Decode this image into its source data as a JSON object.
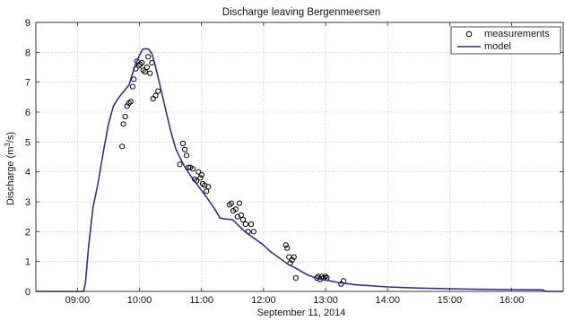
{
  "chart_data": {
    "type": "line",
    "title": "Discharge leaving Bergenmeersen",
    "xlabel": "September 11, 2014",
    "ylabel": "Discharge (m³/s)",
    "ylabel_parts": [
      "Discharge (m",
      "3",
      "/s)"
    ],
    "x_unit": "hours (time of day)",
    "xlim": [
      8.33,
      16.83
    ],
    "ylim": [
      0,
      9
    ],
    "x_ticks": [
      9,
      10,
      11,
      12,
      13,
      14,
      15,
      16
    ],
    "x_tick_labels": [
      "09:00",
      "10:00",
      "11:00",
      "12:00",
      "13:00",
      "14:00",
      "15:00",
      "16:00"
    ],
    "y_ticks": [
      0,
      1,
      2,
      3,
      4,
      5,
      6,
      7,
      8,
      9
    ],
    "y_tick_labels": [
      "0",
      "1",
      "2",
      "3",
      "4",
      "5",
      "6",
      "7",
      "8",
      "9"
    ],
    "grid": true,
    "legend_position": "top-right",
    "series": [
      {
        "name": "measurements",
        "type": "scatter",
        "marker": "circle",
        "color": "#000000",
        "points": [
          [
            9.72,
            4.85
          ],
          [
            9.74,
            5.6
          ],
          [
            9.77,
            5.85
          ],
          [
            9.8,
            6.2
          ],
          [
            9.83,
            6.3
          ],
          [
            9.86,
            6.35
          ],
          [
            9.89,
            6.85
          ],
          [
            9.91,
            7.1
          ],
          [
            9.94,
            7.45
          ],
          [
            9.96,
            7.7
          ],
          [
            9.99,
            7.55
          ],
          [
            10.01,
            7.6
          ],
          [
            10.04,
            7.65
          ],
          [
            10.06,
            7.4
          ],
          [
            10.09,
            7.35
          ],
          [
            10.12,
            7.5
          ],
          [
            10.14,
            7.85
          ],
          [
            10.17,
            7.3
          ],
          [
            10.2,
            7.65
          ],
          [
            10.22,
            6.45
          ],
          [
            10.26,
            6.55
          ],
          [
            10.3,
            6.7
          ],
          [
            10.65,
            4.25
          ],
          [
            10.7,
            4.95
          ],
          [
            10.73,
            4.75
          ],
          [
            10.76,
            4.55
          ],
          [
            10.79,
            4.15
          ],
          [
            10.82,
            4.15
          ],
          [
            10.86,
            4.1
          ],
          [
            10.89,
            3.75
          ],
          [
            10.92,
            3.7
          ],
          [
            10.95,
            4.0
          ],
          [
            10.98,
            3.8
          ],
          [
            11.0,
            3.9
          ],
          [
            11.02,
            3.6
          ],
          [
            11.05,
            3.55
          ],
          [
            11.08,
            3.35
          ],
          [
            11.11,
            3.5
          ],
          [
            11.45,
            2.9
          ],
          [
            11.48,
            2.95
          ],
          [
            11.51,
            2.7
          ],
          [
            11.55,
            2.75
          ],
          [
            11.58,
            2.5
          ],
          [
            11.61,
            2.95
          ],
          [
            11.64,
            2.55
          ],
          [
            11.67,
            2.4
          ],
          [
            11.71,
            2.25
          ],
          [
            11.75,
            2.0
          ],
          [
            11.8,
            2.25
          ],
          [
            11.84,
            2.0
          ],
          [
            12.36,
            1.55
          ],
          [
            12.38,
            1.45
          ],
          [
            12.41,
            1.15
          ],
          [
            12.43,
            0.95
          ],
          [
            12.46,
            1.05
          ],
          [
            12.49,
            1.15
          ],
          [
            12.52,
            0.45
          ],
          [
            12.86,
            0.45
          ],
          [
            12.88,
            0.5
          ],
          [
            12.91,
            0.4
          ],
          [
            12.94,
            0.5
          ],
          [
            12.97,
            0.45
          ],
          [
            13.0,
            0.5
          ],
          [
            13.02,
            0.45
          ],
          [
            13.25,
            0.25
          ],
          [
            13.29,
            0.35
          ]
        ]
      },
      {
        "name": "model",
        "type": "line",
        "color": "#2f2f9a",
        "points": [
          [
            8.33,
            0.0
          ],
          [
            9.1,
            0.0
          ],
          [
            9.13,
            0.3
          ],
          [
            9.18,
            1.5
          ],
          [
            9.25,
            2.8
          ],
          [
            9.33,
            3.6
          ],
          [
            9.42,
            4.7
          ],
          [
            9.5,
            5.6
          ],
          [
            9.58,
            6.2
          ],
          [
            9.67,
            6.5
          ],
          [
            9.75,
            6.7
          ],
          [
            9.83,
            6.9
          ],
          [
            9.92,
            7.5
          ],
          [
            10.0,
            7.9
          ],
          [
            10.05,
            8.1
          ],
          [
            10.1,
            8.12
          ],
          [
            10.15,
            8.1
          ],
          [
            10.2,
            7.95
          ],
          [
            10.25,
            7.6
          ],
          [
            10.33,
            6.9
          ],
          [
            10.42,
            6.1
          ],
          [
            10.5,
            5.4
          ],
          [
            10.58,
            4.8
          ],
          [
            10.67,
            4.4
          ],
          [
            10.75,
            4.1
          ],
          [
            10.83,
            3.85
          ],
          [
            10.92,
            3.6
          ],
          [
            11.0,
            3.38
          ],
          [
            11.1,
            3.1
          ],
          [
            11.2,
            2.8
          ],
          [
            11.3,
            2.45
          ],
          [
            11.4,
            2.42
          ],
          [
            11.5,
            2.4
          ],
          [
            11.6,
            2.2
          ],
          [
            11.7,
            2.0
          ],
          [
            11.8,
            1.85
          ],
          [
            11.9,
            1.7
          ],
          [
            12.0,
            1.55
          ],
          [
            12.1,
            1.35
          ],
          [
            12.2,
            1.2
          ],
          [
            12.3,
            1.05
          ],
          [
            12.4,
            0.9
          ],
          [
            12.5,
            0.8
          ],
          [
            12.6,
            0.68
          ],
          [
            12.7,
            0.56
          ],
          [
            12.8,
            0.48
          ],
          [
            12.9,
            0.42
          ],
          [
            13.0,
            0.38
          ],
          [
            13.2,
            0.3
          ],
          [
            13.5,
            0.22
          ],
          [
            14.0,
            0.15
          ],
          [
            14.5,
            0.11
          ],
          [
            15.0,
            0.09
          ],
          [
            15.5,
            0.07
          ],
          [
            16.0,
            0.06
          ],
          [
            16.5,
            0.05
          ],
          [
            16.55,
            0.0
          ],
          [
            16.83,
            0.0
          ]
        ]
      }
    ]
  }
}
